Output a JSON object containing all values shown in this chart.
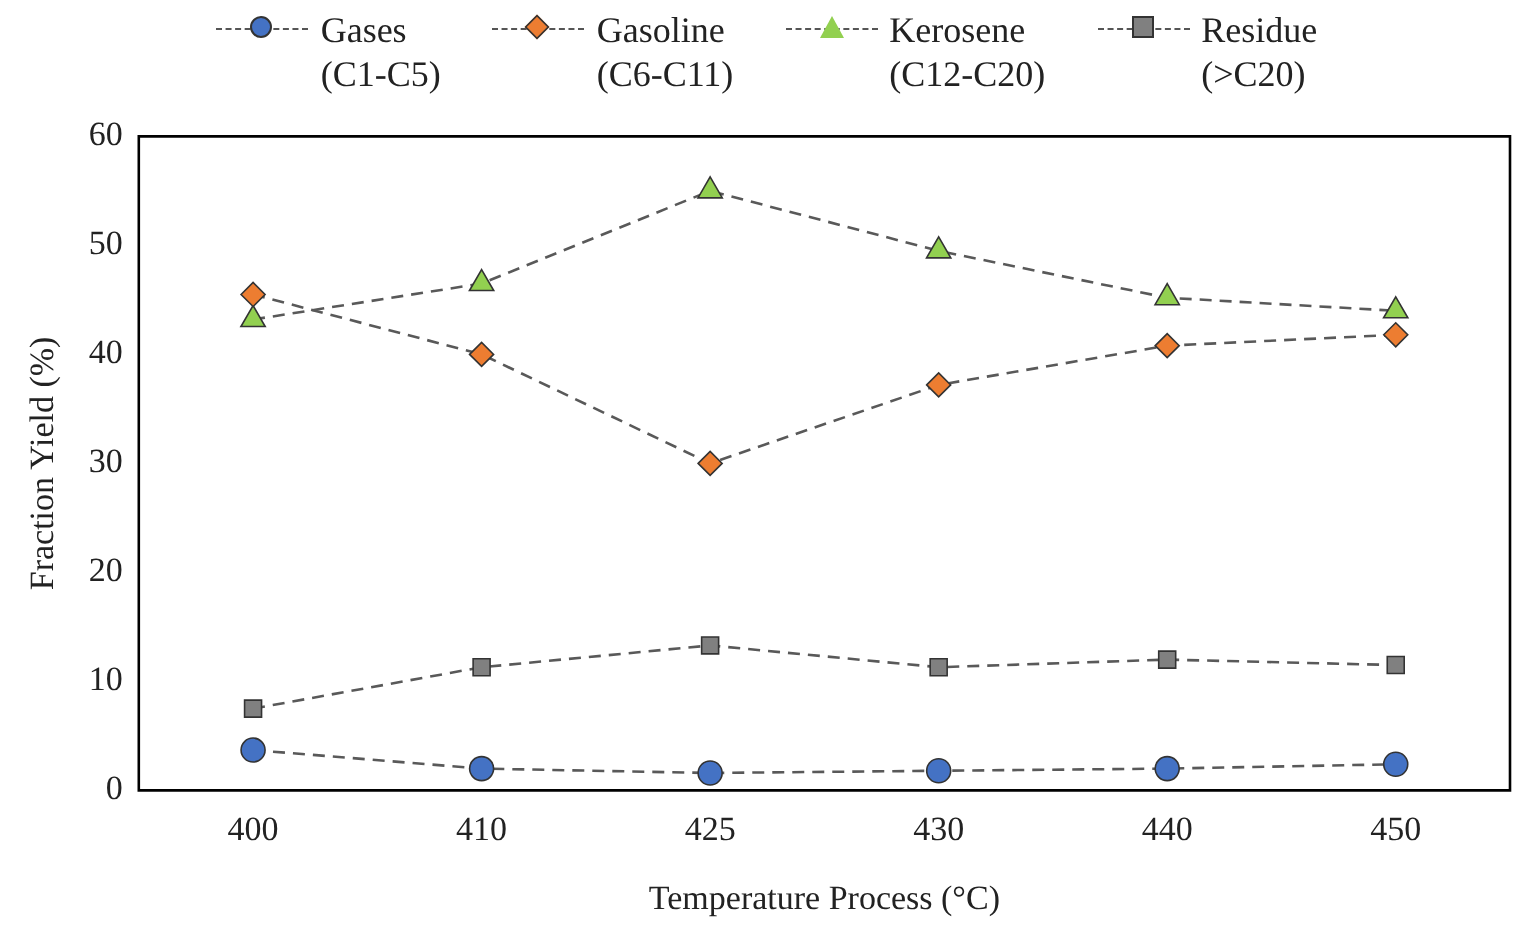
{
  "chart_data": {
    "type": "line",
    "xlabel": "Temperature Process (°C)",
    "ylabel": "Fraction Yield (%)",
    "categories": [
      "400",
      "410",
      "425",
      "430",
      "440",
      "450"
    ],
    "ylim": [
      0,
      60
    ],
    "yticks": [
      0,
      10,
      20,
      30,
      40,
      50,
      60
    ],
    "grid": false,
    "legend": "top",
    "line_style": "dashed",
    "series": [
      {
        "name": "Gases (C1-C5)",
        "color": "#4472c4",
        "marker": "circle",
        "values": [
          3.7,
          2.0,
          1.6,
          1.8,
          2.0,
          2.4
        ]
      },
      {
        "name": "Gasoline (C6-C11)",
        "color": "#ed7d31",
        "marker": "diamond",
        "values": [
          45.5,
          40.0,
          30.0,
          37.2,
          40.8,
          41.8
        ]
      },
      {
        "name": "Kerosene (C12-C20)",
        "color": "#92d050",
        "marker": "triangle",
        "values": [
          43.2,
          46.5,
          55.0,
          49.5,
          45.2,
          44.0
        ]
      },
      {
        "name": "Residue (>C20)",
        "color": "#808080",
        "marker": "square",
        "values": [
          7.5,
          11.3,
          13.3,
          11.3,
          12.0,
          11.5
        ]
      }
    ]
  }
}
